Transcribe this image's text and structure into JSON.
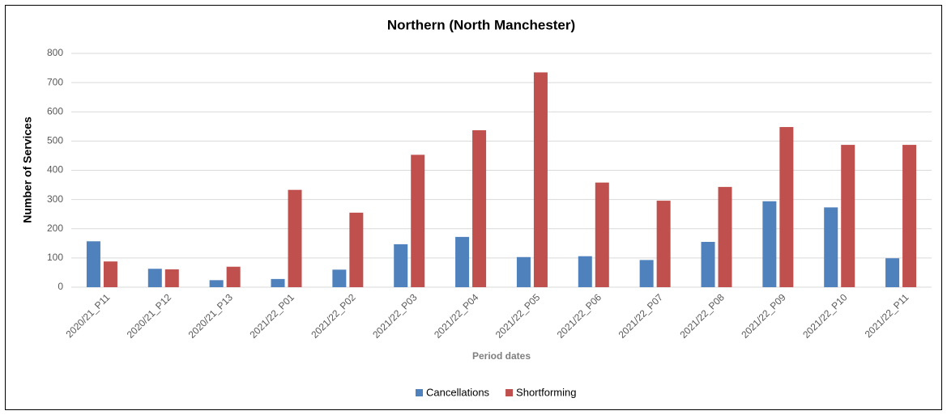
{
  "chart_data": {
    "type": "bar",
    "title": "Northern (North Manchester)",
    "x_label": "Period dates",
    "y_label": "Number of Services",
    "categories": [
      "2020/21_P11",
      "2020/21_P12",
      "2020/21_P13",
      "2021/22_P01",
      "2021/22_P02",
      "2021/22_P03",
      "2021/22_P04",
      "2021/22_P05",
      "2021/22_P06",
      "2021/22_P07",
      "2021/22_P08",
      "2021/22_P09",
      "2021/22_P10",
      "2021/22_P11"
    ],
    "series": [
      {
        "name": "Cancellations",
        "color": "#4f81bd",
        "values": [
          157,
          63,
          24,
          28,
          60,
          147,
          172,
          103,
          106,
          93,
          155,
          294,
          273,
          99
        ]
      },
      {
        "name": "Shortforming",
        "color": "#c0504d",
        "values": [
          88,
          61,
          70,
          333,
          255,
          453,
          537,
          735,
          358,
          296,
          343,
          548,
          487,
          487
        ]
      }
    ],
    "ylim": [
      0,
      800
    ],
    "yticks": [
      0,
      100,
      200,
      300,
      400,
      500,
      600,
      700,
      800
    ],
    "grid": true,
    "legend": "bottom"
  }
}
